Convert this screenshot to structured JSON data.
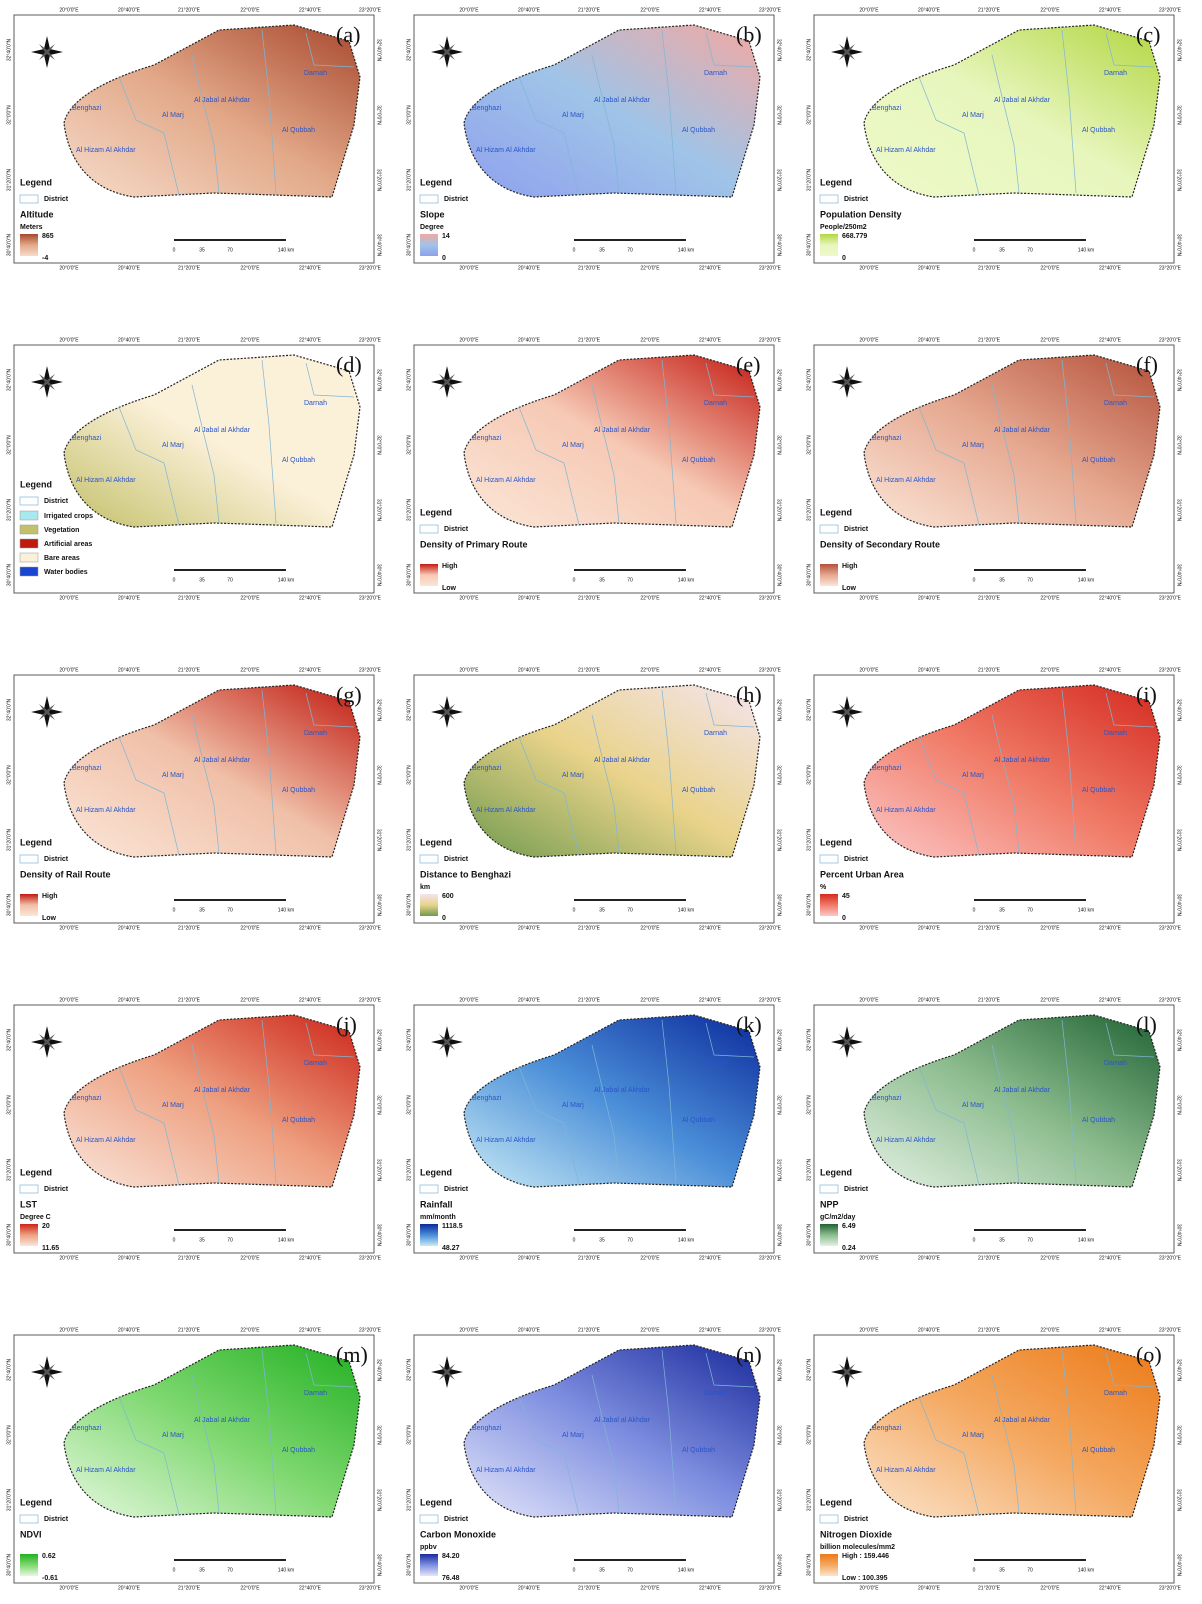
{
  "common": {
    "legend": "Legend",
    "district": "District",
    "lon_labels": [
      "20°0'0\"E",
      "20°40'0\"E",
      "21°20'0\"E",
      "22°0'0\"E",
      "22°40'0\"E",
      "23°20'0\"E"
    ],
    "lat_labels": [
      "32°40'0\"N",
      "32°0'0\"N",
      "31°20'0\"N",
      "30°40'0\"N"
    ],
    "districts": [
      "Darnah",
      "Benghazi",
      "Al Jabal al Akhdar",
      "Al Marj",
      "Al Qubbah",
      "Al Hizam Al Akhdar"
    ],
    "scale": [
      "0",
      "35",
      "70",
      "140 km"
    ]
  },
  "panels": [
    {
      "label": "(a)",
      "title": "Altitude",
      "unit": "Meters",
      "high": "865",
      "low": "-4",
      "colors": [
        "#f6dccb",
        "#e2a888",
        "#a8482e"
      ]
    },
    {
      "label": "(b)",
      "title": "Slope",
      "unit": "Degree",
      "high": "14",
      "low": "0",
      "colors": [
        "#8fa0ee",
        "#9fc4e8",
        "#f3a8a0"
      ]
    },
    {
      "label": "(c)",
      "title": "Population Density",
      "unit": "People/250m2",
      "high": "668.779",
      "low": "0",
      "colors": [
        "#eef9c8",
        "#e7f6bd",
        "#b2d640"
      ]
    },
    {
      "label": "(d)",
      "title": null,
      "classes": [
        {
          "name": "Irrigated crops",
          "color": "#a8e8ef"
        },
        {
          "name": "Vegetation",
          "color": "#c3c06a"
        },
        {
          "name": "Artificial areas",
          "color": "#c01a10"
        },
        {
          "name": "Bare areas",
          "color": "#fbf0d8"
        },
        {
          "name": "Water bodies",
          "color": "#1846d0"
        }
      ],
      "colors": [
        "#c3c06a",
        "#fbf0d8",
        "#fbf0d8"
      ]
    },
    {
      "label": "(e)",
      "title": "Density of Primary Route",
      "high": "High",
      "low": "Low",
      "colors": [
        "#fbe6d8",
        "#f6c9b4",
        "#c41a12"
      ]
    },
    {
      "label": "(f)",
      "title": "Density of Secondary Route",
      "high": "High",
      "low": "Low",
      "colors": [
        "#fbe6d8",
        "#e6a890",
        "#b4503a"
      ]
    },
    {
      "label": "(g)",
      "title": "Density of Rail Route",
      "high": "High",
      "low": "Low",
      "colors": [
        "#fbe6d8",
        "#f0c0a8",
        "#c01a10"
      ]
    },
    {
      "label": "(h)",
      "title": "Distance to Benghazi",
      "unit": "km",
      "high": "600",
      "low": "0",
      "colors": [
        "#6f9a4e",
        "#e9d38a",
        "#f4e4ee"
      ]
    },
    {
      "label": "(i)",
      "title": "Percent Urban Area",
      "unit": "%",
      "high": "45",
      "low": "0",
      "colors": [
        "#fcc8c8",
        "#f07a66",
        "#d42a20"
      ]
    },
    {
      "label": "(j)",
      "title": "LST",
      "unit": "Degree C",
      "high": "20",
      "low": "11.65",
      "colors": [
        "#f9e6dc",
        "#eea080",
        "#cc2418"
      ]
    },
    {
      "label": "(k)",
      "title": "Rainfall",
      "unit": "mm/month",
      "high": "1118.5",
      "low": "48.27",
      "colors": [
        "#c8eaf5",
        "#4a8ed8",
        "#0b2a9c"
      ]
    },
    {
      "label": "(l)",
      "title": "NPP",
      "unit": "gC/m2/day",
      "high": "6.49",
      "low": "0.24",
      "colors": [
        "#e4f1e4",
        "#8cbc8e",
        "#1f6233"
      ]
    },
    {
      "label": "(m)",
      "title": "NDVI",
      "high": "0.62",
      "low": "-0.61",
      "colors": [
        "#e6f8df",
        "#7fd870",
        "#22b022"
      ]
    },
    {
      "label": "(n)",
      "title": "Carbon Monoxide",
      "unit": "ppbv",
      "high": "84.20",
      "low": "76.48",
      "colors": [
        "#e4e6fa",
        "#7f8fe0",
        "#1a2a9c"
      ]
    },
    {
      "label": "(o)",
      "title": "Nitrogen Dioxide",
      "unit": "billion molecules/mm2",
      "high": "High : 159.446",
      "low": "Low : 100.395",
      "colors": [
        "#fbe4cc",
        "#f4a860",
        "#ec7a18"
      ]
    }
  ]
}
